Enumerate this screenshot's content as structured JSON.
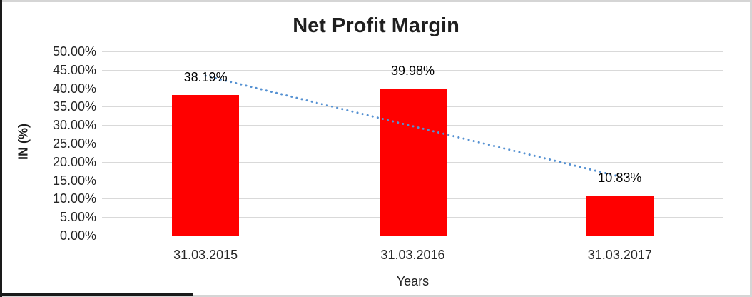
{
  "frame": {
    "background": "#FFFFFF",
    "border_dark": "#1A1A1A",
    "border_light": "#D5D5D5"
  },
  "chart_data": {
    "type": "bar",
    "title": "Net Profit Margin",
    "categories": [
      "31.03.2015",
      "31.03.2016",
      "31.03.2017"
    ],
    "values": [
      38.19,
      39.98,
      10.83
    ],
    "value_labels": [
      "38.19%",
      "39.98%",
      "10.83%"
    ],
    "xlabel": "Years",
    "ylabel": "IN (%)",
    "ylim": [
      0,
      50
    ],
    "yticks": [
      {
        "value": 0,
        "label": "0.00%"
      },
      {
        "value": 5,
        "label": "5.00%"
      },
      {
        "value": 10,
        "label": "10.00%"
      },
      {
        "value": 15,
        "label": "15.00%"
      },
      {
        "value": 20,
        "label": "20.00%"
      },
      {
        "value": 25,
        "label": "25.00%"
      },
      {
        "value": 30,
        "label": "30.00%"
      },
      {
        "value": 35,
        "label": "35.00%"
      },
      {
        "value": 40,
        "label": "40.00%"
      },
      {
        "value": 45,
        "label": "45.00%"
      },
      {
        "value": 50,
        "label": "50.00%"
      }
    ],
    "grid": true,
    "legend": false,
    "bar_color": "#FF0000",
    "gridline_color": "#D9D9D9",
    "text_color": "#262626",
    "trendline": {
      "type": "linear",
      "style": "dotted",
      "color": "#5591D2",
      "start_value": 43.4,
      "end_value": 16.0
    }
  }
}
